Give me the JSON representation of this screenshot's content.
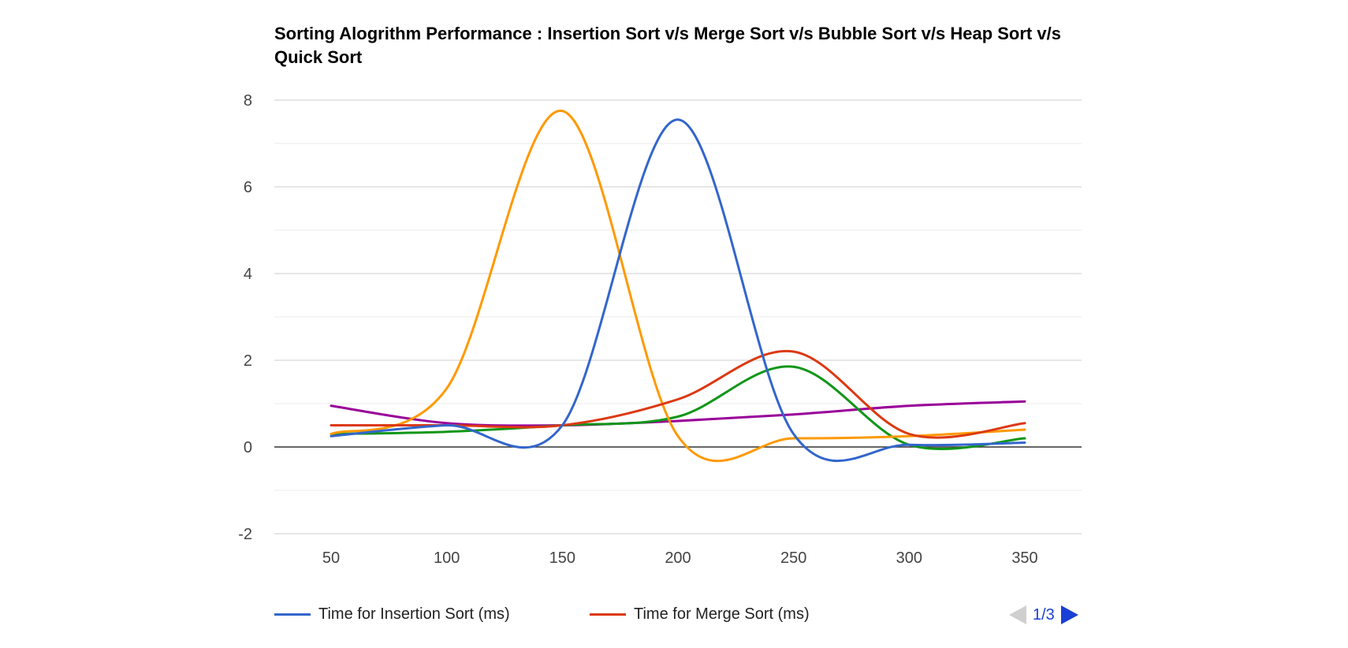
{
  "chart_data": {
    "type": "line",
    "title": "Sorting Alogrithm Performance : Insertion Sort v/s Merge Sort v/s Bubble Sort v/s Heap Sort v/s Quick Sort",
    "x": [
      50,
      100,
      150,
      200,
      250,
      300,
      350
    ],
    "xticks": [
      "50",
      "100",
      "150",
      "200",
      "250",
      "300",
      "350"
    ],
    "ylim": [
      -2,
      8
    ],
    "yticks": [
      8,
      6,
      4,
      2,
      0,
      -2
    ],
    "grid": true,
    "legend_position": "bottom",
    "series": [
      {
        "name": "Time for Insertion Sort (ms)",
        "color": "#3366cc",
        "values": [
          0.25,
          0.5,
          0.5,
          7.55,
          0.3,
          0.05,
          0.1
        ]
      },
      {
        "name": "Time for Merge Sort (ms)",
        "color": "#dc3912",
        "values": [
          0.5,
          0.5,
          0.5,
          1.1,
          2.2,
          0.3,
          0.55
        ]
      },
      {
        "color": "#ff9900",
        "values": [
          0.3,
          1.35,
          7.75,
          0.25,
          0.2,
          0.25,
          0.4
        ]
      },
      {
        "color": "#109618",
        "values": [
          0.3,
          0.35,
          0.5,
          0.7,
          1.85,
          0.05,
          0.2
        ]
      },
      {
        "color": "#990099",
        "values": [
          0.95,
          0.55,
          0.5,
          0.6,
          0.75,
          0.95,
          1.05
        ]
      }
    ],
    "pager": "1/3"
  }
}
